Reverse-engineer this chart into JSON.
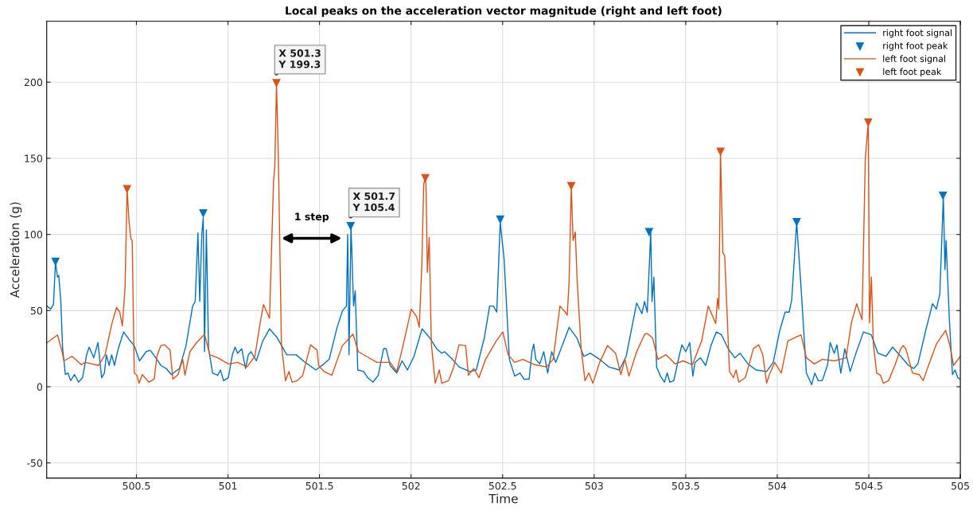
{
  "chart_data": {
    "type": "line",
    "title": "Local peaks on the acceleration vector magnitude (right and left foot)",
    "xlabel": "Time",
    "ylabel": "Acceleration (g)",
    "xlim": [
      500.01,
      505
    ],
    "ylim": [
      -60,
      240
    ],
    "xticks": [
      500.5,
      501,
      501.5,
      502,
      502.5,
      503,
      503.5,
      504,
      504.5,
      505
    ],
    "yticks": [
      -50,
      0,
      50,
      100,
      150,
      200
    ],
    "grid": true,
    "legend": "top right",
    "line_style": "solid",
    "series": [
      {
        "name": "right foot signal",
        "color": "#0072bd",
        "x": [
          500.012,
          500.032,
          500.047,
          500.058,
          500.069,
          500.076,
          500.087,
          500.097,
          500.112,
          500.126,
          500.141,
          500.162,
          500.184,
          500.206,
          500.228,
          500.242,
          500.267,
          500.29,
          500.31,
          500.325,
          500.336,
          500.351,
          500.365,
          500.38,
          500.401,
          500.43,
          500.46,
          500.488,
          500.517,
          500.553,
          500.575,
          500.612,
          500.633,
          500.662,
          500.691,
          500.735,
          500.771,
          500.807,
          500.821,
          500.836,
          500.846,
          500.857,
          500.865,
          500.872,
          500.882,
          500.894,
          500.916,
          500.944,
          500.959,
          500.976,
          501.002,
          501.024,
          501.039,
          501.053,
          501.075,
          501.096,
          501.111,
          501.126,
          501.155,
          501.19,
          501.227,
          501.27,
          501.321,
          501.372,
          501.422,
          501.48,
          501.524,
          501.553,
          501.596,
          501.626,
          501.647,
          501.654,
          501.661,
          501.672,
          501.686,
          501.695,
          501.709,
          501.741,
          501.763,
          501.792,
          501.821,
          501.85,
          501.864,
          501.886,
          501.922,
          501.951,
          501.98,
          502.016,
          502.06,
          502.103,
          502.139,
          502.168,
          502.183,
          502.226,
          502.262,
          502.32,
          502.356,
          502.4,
          502.429,
          502.45,
          502.468,
          502.487,
          502.508,
          502.537,
          502.566,
          502.595,
          502.616,
          502.645,
          502.66,
          502.67,
          502.681,
          502.703,
          502.725,
          502.746,
          502.768,
          502.79,
          502.819,
          502.863,
          502.906,
          502.943,
          502.979,
          503.03,
          503.08,
          503.138,
          503.175,
          503.232,
          503.261,
          503.275,
          503.29,
          503.309,
          503.316,
          503.326,
          503.341,
          503.362,
          503.384,
          503.399,
          503.413,
          503.435,
          503.464,
          503.479,
          503.5,
          503.522,
          503.539,
          503.551,
          503.58,
          503.609,
          503.638,
          503.667,
          503.696,
          503.732,
          503.768,
          503.797,
          503.84,
          503.884,
          503.942,
          503.978,
          504.014,
          504.043,
          504.065,
          504.079,
          504.106,
          504.13,
          504.159,
          504.188,
          504.205,
          504.224,
          504.246,
          504.275,
          504.289,
          504.311,
          504.326,
          504.347,
          504.369,
          504.398,
          504.427,
          504.471,
          504.514,
          504.55,
          504.594,
          504.63,
          504.674,
          504.717,
          504.746,
          504.768,
          504.811,
          504.848,
          504.869,
          504.888,
          504.907,
          504.916,
          504.922,
          504.94,
          504.957,
          504.971,
          504.986,
          505
        ],
        "values": [
          53,
          51,
          54,
          82,
          72,
          73,
          56,
          25,
          8,
          9,
          4,
          8,
          3,
          6,
          21,
          26,
          19,
          29,
          6,
          9,
          21,
          14,
          21,
          14,
          25,
          36,
          31,
          27,
          17,
          23,
          24,
          18,
          14,
          12,
          8,
          12,
          27,
          53,
          56,
          101,
          56,
          100,
          111,
          23,
          103,
          25,
          9,
          7.5,
          11,
          4,
          6,
          21,
          26,
          22,
          25,
          12,
          21,
          23,
          17,
          30,
          38,
          32,
          21,
          21,
          16,
          11,
          15,
          18,
          39,
          50,
          53,
          100,
          21,
          105.4,
          53,
          63,
          11,
          10,
          6,
          3,
          7.5,
          25,
          25,
          14,
          9,
          17,
          11,
          20,
          38,
          32,
          25,
          22,
          23,
          18,
          13,
          10,
          11,
          32,
          53,
          53,
          49,
          108,
          84,
          18,
          7,
          9,
          5,
          5,
          23,
          28,
          18,
          15,
          23,
          9,
          23,
          16,
          25,
          39,
          32,
          20,
          22,
          18,
          13,
          11,
          20,
          55,
          48,
          56,
          49,
          101.5,
          56,
          72,
          13,
          7,
          3,
          9,
          3,
          4,
          20,
          27.5,
          23,
          29,
          7,
          16,
          19,
          14,
          27,
          36,
          34,
          25,
          19,
          22,
          15,
          11,
          10,
          16,
          37,
          49,
          49,
          57,
          108,
          65,
          9,
          1.4,
          9,
          4,
          4,
          14.5,
          29,
          22,
          27.5,
          9,
          25,
          10,
          21,
          36,
          34,
          22,
          20,
          26,
          20,
          14,
          12,
          15,
          37,
          54.5,
          51,
          61,
          125,
          77,
          96,
          44,
          8,
          11,
          6,
          5
        ]
      },
      {
        "name": "right foot peak",
        "type": "scatter",
        "marker": "triangle",
        "color": "#0072bd",
        "x": [
          500.058,
          500.865,
          501.67,
          502.487,
          503.3,
          504.106,
          504.905
        ],
        "values": [
          82,
          113.7,
          105.4,
          109.7,
          101.5,
          108,
          125.3
        ]
      },
      {
        "name": "left foot signal",
        "color": "#d95319",
        "x": [
          500.012,
          500.069,
          500.09,
          500.105,
          500.148,
          500.199,
          500.221,
          500.293,
          500.329,
          500.365,
          500.391,
          500.409,
          500.423,
          500.438,
          500.449,
          500.46,
          500.47,
          500.477,
          500.488,
          500.503,
          500.514,
          500.532,
          500.568,
          500.597,
          500.612,
          500.633,
          500.655,
          500.684,
          500.699,
          500.727,
          500.753,
          500.765,
          500.792,
          500.829,
          500.872,
          500.901,
          500.944,
          501.002,
          501.053,
          501.104,
          501.147,
          501.176,
          501.194,
          501.227,
          501.249,
          501.256,
          501.265,
          501.275,
          501.292,
          501.314,
          501.333,
          501.35,
          501.379,
          501.408,
          501.451,
          501.487,
          501.495,
          501.524,
          501.567,
          501.625,
          501.683,
          501.712,
          501.756,
          501.813,
          501.886,
          501.922,
          501.958,
          502.001,
          502.03,
          502.045,
          502.059,
          502.069,
          502.078,
          502.082,
          502.089,
          502.099,
          502.111,
          502.132,
          502.154,
          502.168,
          502.205,
          502.233,
          502.262,
          502.298,
          502.313,
          502.342,
          502.371,
          502.407,
          502.465,
          502.501,
          502.53,
          502.566,
          502.61,
          502.675,
          502.74,
          502.776,
          502.813,
          502.842,
          502.853,
          502.863,
          502.875,
          502.885,
          502.897,
          502.907,
          502.929,
          502.95,
          502.971,
          502.993,
          503.03,
          503.073,
          503.117,
          503.146,
          503.168,
          503.19,
          503.232,
          503.276,
          503.29,
          503.319,
          503.348,
          503.392,
          503.442,
          503.486,
          503.537,
          503.587,
          503.623,
          503.664,
          503.674,
          503.681,
          503.69,
          503.703,
          503.713,
          503.739,
          503.761,
          503.775,
          503.79,
          503.826,
          503.87,
          503.899,
          503.921,
          503.942,
          503.957,
          503.986,
          504.022,
          504.058,
          504.109,
          504.13,
          504.159,
          504.203,
          504.246,
          504.311,
          504.376,
          504.405,
          504.434,
          504.463,
          504.481,
          504.497,
          504.504,
          504.514,
          504.525,
          504.543,
          504.564,
          504.579,
          504.608,
          504.644,
          504.674,
          504.688,
          504.702,
          504.739,
          504.775,
          504.797,
          504.826,
          504.869,
          504.92,
          504.941,
          504.963,
          505
        ],
        "values": [
          29,
          34,
          25,
          17,
          20,
          14.5,
          16,
          14,
          21,
          41,
          52,
          49,
          40,
          65,
          129.7,
          108,
          97,
          96,
          9,
          7.5,
          2.3,
          8,
          3,
          5,
          20,
          27,
          27.5,
          24,
          5,
          8,
          18,
          7.5,
          23,
          29,
          34.5,
          21,
          19,
          15,
          16,
          13,
          20,
          42,
          54,
          45,
          135,
          145,
          199.3,
          152,
          28,
          4,
          10,
          3,
          4,
          7.5,
          27.5,
          24,
          14,
          10,
          7.5,
          27,
          34.5,
          23,
          20,
          16,
          16,
          10,
          28,
          51,
          46,
          39,
          81,
          133,
          136.8,
          131,
          75,
          98,
          28,
          2.3,
          11,
          2.3,
          4,
          13,
          27.5,
          27,
          7.5,
          12,
          6,
          18,
          30,
          36,
          21,
          16,
          18,
          14.5,
          13,
          18,
          53,
          49,
          47,
          68,
          131.6,
          96,
          101.5,
          70,
          25,
          4,
          9,
          2.3,
          16,
          27,
          22,
          8,
          18,
          7,
          23,
          34.5,
          35,
          32,
          18,
          21,
          15,
          17,
          14.5,
          30,
          53,
          41.5,
          58,
          51,
          154.2,
          88,
          86,
          10,
          6,
          11,
          3,
          6,
          25,
          27.5,
          21,
          2.3,
          8,
          16,
          9,
          30,
          33,
          34,
          19,
          15,
          18,
          17,
          19,
          42,
          54.5,
          44,
          150,
          173.4,
          42,
          72,
          28,
          9,
          7.5,
          2.3,
          4,
          14.5,
          25,
          27,
          25,
          9,
          8,
          4,
          14,
          28,
          37,
          28,
          14,
          20
        ]
      },
      {
        "name": "left foot peak",
        "type": "scatter",
        "marker": "triangle",
        "color": "#d95319",
        "x": [
          500.449,
          501.265,
          502.078,
          502.875,
          503.69,
          504.497
        ],
        "values": [
          129.7,
          199.3,
          136.8,
          131.6,
          154.2,
          173.4
        ]
      }
    ],
    "annotations": [
      {
        "text": "X 501.3\nY 199.3",
        "x": 501.265,
        "y": 199.3
      },
      {
        "text": "X 501.7\nY 105.4",
        "x": 501.67,
        "y": 105.4
      },
      "1 step"
    ]
  }
}
